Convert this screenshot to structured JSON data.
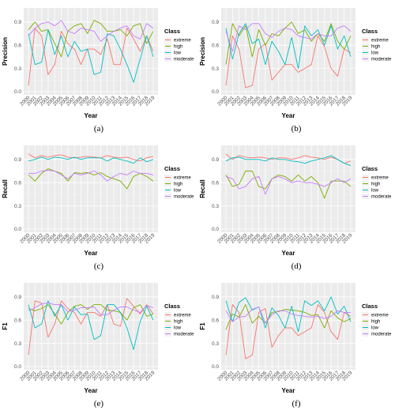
{
  "legend_title": "Class",
  "classes": [
    "extreme",
    "high",
    "low",
    "moderate"
  ],
  "colors": {
    "extreme": "#F8766D",
    "high": "#7CAE00",
    "low": "#00BFC4",
    "moderate": "#C77CFF"
  },
  "chart_data": [
    {
      "type": "line",
      "caption": "(a)",
      "xlabel": "Year",
      "ylabel": "Precision",
      "ylim": [
        0,
        1
      ],
      "yticks": [
        "0.0",
        "0.3",
        "0.6",
        "0.9"
      ],
      "grid": true,
      "legend_position": "right",
      "x": [
        "2000",
        "2001",
        "2002",
        "2003",
        "2004",
        "2005",
        "2006",
        "2007",
        "2008",
        "2009",
        "2010",
        "2011",
        "2012",
        "2013",
        "2014",
        "2015",
        "2016",
        "2017",
        "2018",
        "2019"
      ],
      "series": [
        {
          "name": "extreme",
          "values": [
            0.08,
            0.82,
            0.72,
            0.22,
            0.35,
            0.78,
            0.62,
            0.55,
            0.35,
            0.55,
            0.55,
            0.48,
            0.68,
            0.35,
            0.35,
            0.82,
            0.68,
            0.52,
            0.72,
            0.52
          ]
        },
        {
          "name": "high",
          "values": [
            0.8,
            0.9,
            0.78,
            0.8,
            0.62,
            0.45,
            0.78,
            0.85,
            0.88,
            0.75,
            0.92,
            0.88,
            0.78,
            0.78,
            0.8,
            0.72,
            0.85,
            0.88,
            0.62,
            0.78
          ]
        },
        {
          "name": "low",
          "values": [
            0.75,
            0.35,
            0.38,
            0.8,
            0.48,
            0.72,
            0.45,
            0.65,
            0.52,
            0.55,
            0.22,
            0.25,
            0.75,
            0.72,
            0.55,
            0.35,
            0.12,
            0.42,
            0.72,
            0.45
          ]
        },
        {
          "name": "moderate",
          "values": [
            0.72,
            0.82,
            0.88,
            0.9,
            0.85,
            0.92,
            0.78,
            0.75,
            0.82,
            0.8,
            0.78,
            0.65,
            0.72,
            0.78,
            0.82,
            0.85,
            0.72,
            0.68,
            0.88,
            0.82
          ]
        }
      ]
    },
    {
      "type": "line",
      "caption": "(b)",
      "xlabel": "Year",
      "ylabel": "Precision",
      "ylim": [
        0,
        1
      ],
      "yticks": [
        "0.0",
        "0.3",
        "0.6",
        "0.9"
      ],
      "grid": true,
      "legend_position": "right",
      "x": [
        "2000",
        "2001",
        "2002",
        "2003",
        "2004",
        "2005",
        "2006",
        "2007",
        "2008",
        "2009",
        "2010",
        "2011",
        "2012",
        "2013",
        "2014",
        "2015",
        "2016",
        "2017",
        "2018",
        "2019"
      ],
      "series": [
        {
          "name": "extreme",
          "values": [
            0.08,
            0.72,
            0.55,
            0.05,
            0.08,
            0.55,
            0.62,
            0.15,
            0.25,
            0.35,
            0.35,
            0.25,
            0.3,
            0.35,
            0.72,
            0.58,
            0.3,
            0.2,
            0.55,
            0.5
          ]
        },
        {
          "name": "high",
          "values": [
            0.35,
            0.88,
            0.72,
            0.85,
            0.45,
            0.8,
            0.6,
            0.75,
            0.72,
            0.82,
            0.9,
            0.75,
            0.8,
            0.65,
            0.75,
            0.65,
            0.88,
            0.65,
            0.55,
            0.72
          ]
        },
        {
          "name": "low",
          "values": [
            0.82,
            0.42,
            0.75,
            0.88,
            0.62,
            0.68,
            0.35,
            0.65,
            0.52,
            0.35,
            0.7,
            0.3,
            0.85,
            0.72,
            0.8,
            0.6,
            0.85,
            0.55,
            0.72,
            0.45
          ]
        },
        {
          "name": "moderate",
          "values": [
            0.78,
            0.52,
            0.85,
            0.8,
            0.88,
            0.88,
            0.75,
            0.7,
            0.78,
            0.82,
            0.8,
            0.72,
            0.7,
            0.68,
            0.75,
            0.72,
            0.72,
            0.82,
            0.85,
            0.78
          ]
        }
      ]
    },
    {
      "type": "line",
      "caption": "(c)",
      "xlabel": "Year",
      "ylabel": "Recall",
      "ylim": [
        0,
        1
      ],
      "yticks": [
        "0.0",
        "0.3",
        "0.6",
        "0.9"
      ],
      "grid": true,
      "legend_position": "right",
      "x": [
        "2000",
        "2001",
        "2002",
        "2003",
        "2004",
        "2005",
        "2006",
        "2007",
        "2008",
        "2009",
        "2010",
        "2011",
        "2012",
        "2013",
        "2014",
        "2015",
        "2016",
        "2017",
        "2018",
        "2019"
      ],
      "series": [
        {
          "name": "extreme",
          "values": [
            0.97,
            0.92,
            0.95,
            0.93,
            0.95,
            0.96,
            0.93,
            0.92,
            0.93,
            0.94,
            0.93,
            0.92,
            0.95,
            0.93,
            0.92,
            0.93,
            0.9,
            0.88,
            0.92,
            0.94
          ]
        },
        {
          "name": "high",
          "values": [
            0.7,
            0.62,
            0.72,
            0.78,
            0.75,
            0.72,
            0.62,
            0.73,
            0.72,
            0.73,
            0.7,
            0.73,
            0.68,
            0.65,
            0.62,
            0.52,
            0.68,
            0.72,
            0.68,
            0.62
          ]
        },
        {
          "name": "low",
          "values": [
            0.88,
            0.9,
            0.93,
            0.9,
            0.93,
            0.92,
            0.9,
            0.93,
            0.9,
            0.92,
            0.92,
            0.92,
            0.88,
            0.92,
            0.9,
            0.88,
            0.85,
            0.92,
            0.87,
            0.9
          ]
        },
        {
          "name": "moderate",
          "values": [
            0.72,
            0.72,
            0.75,
            0.76,
            0.75,
            0.7,
            0.65,
            0.72,
            0.7,
            0.72,
            0.75,
            0.7,
            0.62,
            0.68,
            0.72,
            0.7,
            0.75,
            0.72,
            0.72,
            0.7
          ]
        }
      ]
    },
    {
      "type": "line",
      "caption": "(d)",
      "xlabel": "Year",
      "ylabel": "Recall",
      "ylim": [
        0,
        1
      ],
      "yticks": [
        "0.0",
        "0.3",
        "0.6",
        "0.9"
      ],
      "grid": true,
      "legend_position": "right",
      "x": [
        "2000",
        "2001",
        "2002",
        "2003",
        "2004",
        "2005",
        "2006",
        "2007",
        "2008",
        "2009",
        "2010",
        "2011",
        "2012",
        "2013",
        "2014",
        "2015",
        "2016",
        "2017",
        "2018",
        "2019"
      ],
      "series": [
        {
          "name": "extreme",
          "values": [
            0.97,
            0.9,
            0.95,
            0.93,
            0.92,
            0.93,
            0.92,
            0.9,
            0.92,
            0.92,
            0.9,
            0.92,
            0.95,
            0.93,
            0.92,
            0.9,
            0.93,
            0.9,
            0.85,
            0.88
          ]
        },
        {
          "name": "high",
          "values": [
            0.7,
            0.55,
            0.58,
            0.75,
            0.75,
            0.55,
            0.52,
            0.65,
            0.7,
            0.68,
            0.62,
            0.7,
            0.62,
            0.68,
            0.6,
            0.4,
            0.62,
            0.62,
            0.62,
            0.55
          ]
        },
        {
          "name": "low",
          "values": [
            0.88,
            0.92,
            0.93,
            0.9,
            0.9,
            0.9,
            0.88,
            0.92,
            0.9,
            0.9,
            0.88,
            0.87,
            0.85,
            0.88,
            0.9,
            0.92,
            0.95,
            0.9,
            0.85,
            0.82
          ]
        },
        {
          "name": "moderate",
          "values": [
            0.68,
            0.65,
            0.52,
            0.55,
            0.65,
            0.68,
            0.45,
            0.65,
            0.68,
            0.65,
            0.6,
            0.62,
            0.6,
            0.6,
            0.58,
            0.55,
            0.6,
            0.65,
            0.6,
            0.65
          ]
        }
      ]
    },
    {
      "type": "line",
      "caption": "(e)",
      "xlabel": "Year",
      "ylabel": "F1",
      "ylim": [
        0,
        1
      ],
      "yticks": [
        "0.0",
        "0.3",
        "0.6",
        "0.9"
      ],
      "grid": true,
      "legend_position": "right",
      "x": [
        "2000",
        "2001",
        "2002",
        "2003",
        "2004",
        "2005",
        "2006",
        "2007",
        "2008",
        "2009",
        "2010",
        "2011",
        "2012",
        "2013",
        "2014",
        "2015",
        "2016",
        "2017",
        "2018",
        "2019"
      ],
      "series": [
        {
          "name": "extreme",
          "values": [
            0.15,
            0.85,
            0.82,
            0.38,
            0.55,
            0.85,
            0.75,
            0.7,
            0.55,
            0.7,
            0.7,
            0.65,
            0.8,
            0.55,
            0.52,
            0.88,
            0.78,
            0.68,
            0.8,
            0.68
          ]
        },
        {
          "name": "high",
          "values": [
            0.75,
            0.72,
            0.75,
            0.8,
            0.68,
            0.55,
            0.7,
            0.78,
            0.8,
            0.74,
            0.8,
            0.8,
            0.73,
            0.72,
            0.7,
            0.6,
            0.76,
            0.8,
            0.65,
            0.68
          ]
        },
        {
          "name": "low",
          "values": [
            0.8,
            0.5,
            0.55,
            0.85,
            0.65,
            0.8,
            0.6,
            0.77,
            0.67,
            0.68,
            0.35,
            0.4,
            0.8,
            0.8,
            0.7,
            0.5,
            0.22,
            0.58,
            0.78,
            0.6
          ]
        },
        {
          "name": "moderate",
          "values": [
            0.72,
            0.76,
            0.81,
            0.82,
            0.8,
            0.8,
            0.71,
            0.73,
            0.76,
            0.76,
            0.77,
            0.67,
            0.67,
            0.73,
            0.77,
            0.77,
            0.73,
            0.7,
            0.79,
            0.76
          ]
        }
      ]
    },
    {
      "type": "line",
      "caption": "(f)",
      "xlabel": "Year",
      "ylabel": "F1",
      "ylim": [
        0,
        1
      ],
      "yticks": [
        "0.0",
        "0.3",
        "0.6",
        "0.9"
      ],
      "grid": true,
      "legend_position": "right",
      "x": [
        "2000",
        "2001",
        "2002",
        "2003",
        "2004",
        "2005",
        "2006",
        "2007",
        "2008",
        "2009",
        "2010",
        "2011",
        "2012",
        "2013",
        "2014",
        "2015",
        "2016",
        "2017",
        "2018",
        "2019"
      ],
      "series": [
        {
          "name": "extreme",
          "values": [
            0.15,
            0.8,
            0.7,
            0.1,
            0.15,
            0.7,
            0.75,
            0.25,
            0.4,
            0.5,
            0.5,
            0.4,
            0.45,
            0.5,
            0.8,
            0.7,
            0.45,
            0.35,
            0.7,
            0.65
          ]
        },
        {
          "name": "high",
          "values": [
            0.48,
            0.68,
            0.64,
            0.8,
            0.56,
            0.65,
            0.56,
            0.7,
            0.71,
            0.74,
            0.73,
            0.72,
            0.7,
            0.66,
            0.67,
            0.5,
            0.72,
            0.63,
            0.58,
            0.62
          ]
        },
        {
          "name": "low",
          "values": [
            0.85,
            0.58,
            0.83,
            0.89,
            0.73,
            0.77,
            0.5,
            0.76,
            0.66,
            0.5,
            0.78,
            0.45,
            0.85,
            0.79,
            0.85,
            0.72,
            0.9,
            0.68,
            0.78,
            0.58
          ]
        },
        {
          "name": "moderate",
          "values": [
            0.72,
            0.58,
            0.64,
            0.65,
            0.74,
            0.77,
            0.56,
            0.67,
            0.72,
            0.72,
            0.68,
            0.66,
            0.65,
            0.64,
            0.65,
            0.62,
            0.65,
            0.72,
            0.7,
            0.7
          ]
        }
      ]
    }
  ]
}
